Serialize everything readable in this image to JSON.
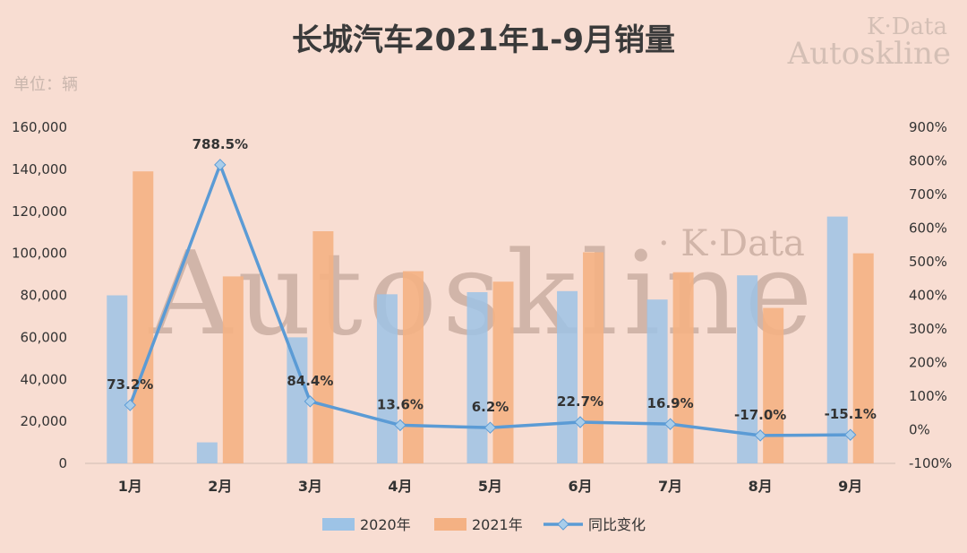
{
  "title": "长城汽车2021年1-9月销量",
  "unit_label": "单位：辆",
  "watermark": {
    "corner_line1": "K·Data",
    "corner_line2": "Autoskline",
    "center_main": "Autoskline",
    "center_sub": "· K·Data"
  },
  "colors": {
    "background": "#f8ddd2",
    "bar_2020": "#9dc3e6",
    "bar_2021": "#f4b183",
    "line": "#5b9bd5"
  },
  "chart_data": {
    "type": "bar",
    "categories": [
      "1月",
      "2月",
      "3月",
      "4月",
      "5月",
      "6月",
      "7月",
      "8月",
      "9月"
    ],
    "series": [
      {
        "name": "2020年",
        "type": "bar",
        "axis": "left",
        "values": [
          80000,
          10000,
          60000,
          80500,
          81500,
          82000,
          78000,
          89500,
          117500
        ]
      },
      {
        "name": "2021年",
        "type": "bar",
        "axis": "left",
        "values": [
          139000,
          89000,
          110500,
          91500,
          86500,
          100500,
          91000,
          74000,
          100000
        ]
      },
      {
        "name": "同比变化",
        "type": "line",
        "axis": "right",
        "values": [
          73.2,
          788.5,
          84.4,
          13.6,
          6.2,
          22.7,
          16.9,
          -17.0,
          -15.1
        ],
        "labels": [
          "73.2%",
          "788.5%",
          "84.4%",
          "13.6%",
          "6.2%",
          "22.7%",
          "16.9%",
          "-17.0%",
          "-15.1%"
        ]
      }
    ],
    "y_left": {
      "min": 0,
      "max": 160000,
      "ticks": [
        "0",
        "20,000",
        "40,000",
        "60,000",
        "80,000",
        "100,000",
        "120,000",
        "140,000",
        "160,000"
      ]
    },
    "y_right": {
      "min": -100,
      "max": 900,
      "ticks": [
        "-100%",
        "0%",
        "100%",
        "200%",
        "300%",
        "400%",
        "500%",
        "600%",
        "700%",
        "800%",
        "900%"
      ]
    },
    "legend_position": "bottom",
    "grid": false
  }
}
